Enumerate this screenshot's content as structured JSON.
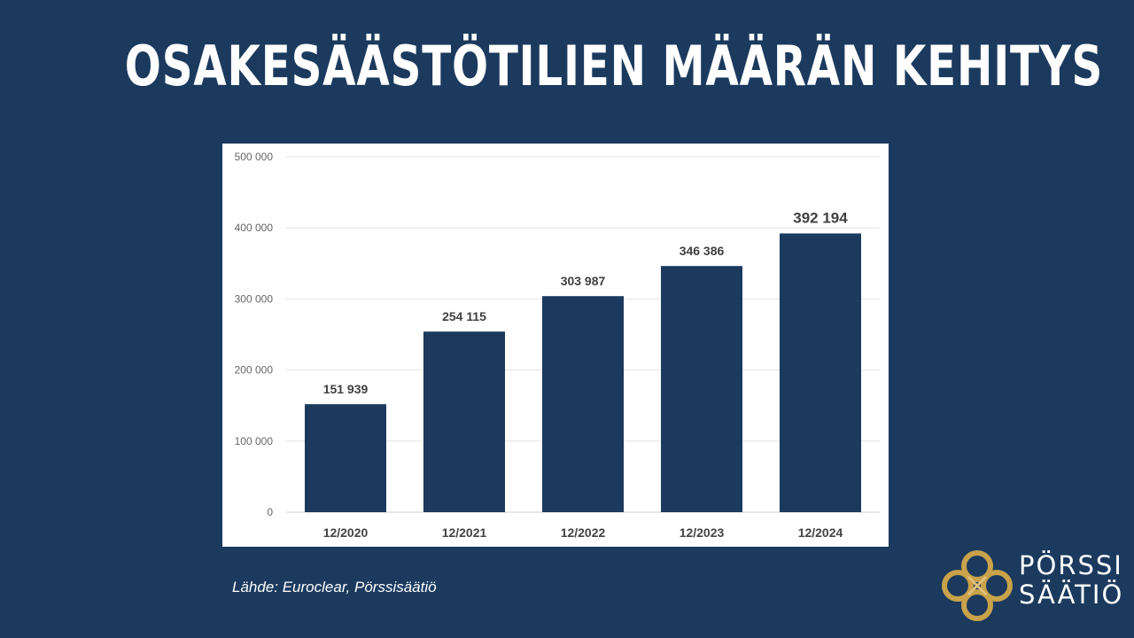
{
  "title": "OSAKESÄÄSTÖTILIEN MÄÄRÄN KEHITYS",
  "source": "Lähde: Euroclear, Pörssisäätiö",
  "logo": {
    "line1": "PÖRSSI",
    "line2": "SÄÄTIÖ",
    "icon": "gold-knot-icon"
  },
  "colors": {
    "background": "#1b3a5e",
    "bar": "#1b3a5e",
    "logo_gold": "#c9a24a"
  },
  "chart_data": {
    "type": "bar",
    "categories": [
      "12/2020",
      "12/2021",
      "12/2022",
      "12/2023",
      "12/2024"
    ],
    "values": [
      151939,
      254115,
      303987,
      346386,
      392194
    ],
    "value_labels": [
      "151 939",
      "254 115",
      "303 987",
      "346 386",
      "392 194"
    ],
    "ylim": [
      0,
      500000
    ],
    "yticks": [
      0,
      100000,
      200000,
      300000,
      400000,
      500000
    ],
    "ytick_labels": [
      "0",
      "100 000",
      "200 000",
      "300 000",
      "400 000",
      "500 000"
    ],
    "grid": true,
    "legend": "none"
  }
}
